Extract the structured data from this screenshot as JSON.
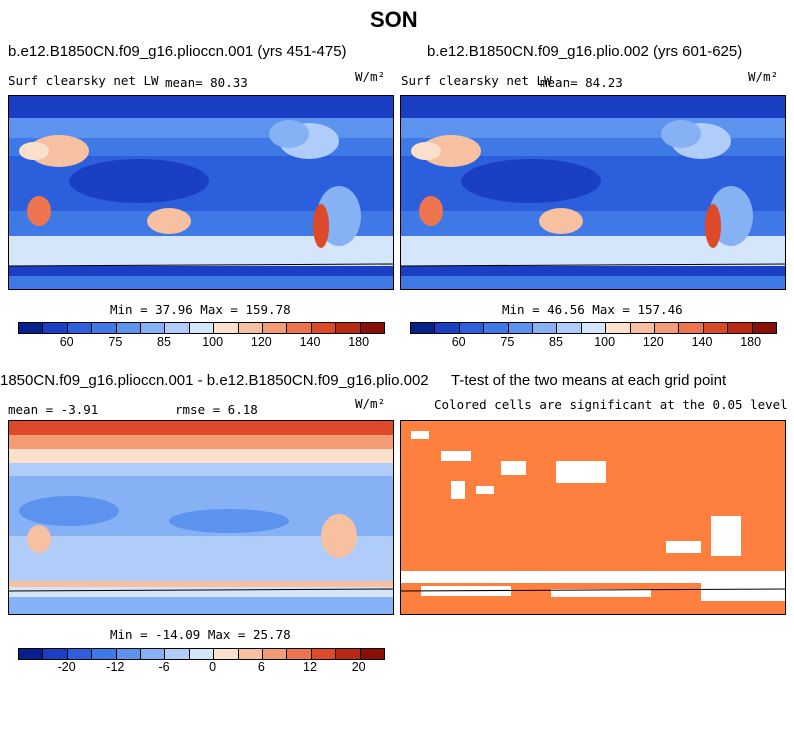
{
  "figure_title": "SON",
  "panels": {
    "a": {
      "title": "b.e12.B1850CN.f09_g16.plioccn.001 (yrs 451-475)",
      "left_label": "Surf clearsky net LW",
      "mean_label": "mean=  80.33",
      "units": "W/m²",
      "minmax": "Min =  37.96 Max = 159.78"
    },
    "b": {
      "title": "b.e12.B1850CN.f09_g16.plio.002 (yrs 601-625)",
      "left_label": "Surf clearsky net LW",
      "mean_label": "mean=  84.23",
      "units": "W/m²",
      "minmax": "Min =  46.56 Max = 157.46"
    },
    "c": {
      "title": "1850CN.f09_g16.plioccn.001 - b.e12.B1850CN.f09_g16.plio.002",
      "mean_label": "mean =  -3.91",
      "rmse_label": "rmse =   6.18",
      "units": "W/m²",
      "minmax": "Min = -14.09 Max =  25.78"
    },
    "d": {
      "title": "T-test of the two means at each grid point",
      "subtitle": "Colored cells are significant at the 0.05 level"
    }
  },
  "colorbar_abs": {
    "ticks": [
      "60",
      "75",
      "85",
      "100",
      "120",
      "140",
      "180"
    ],
    "colors": [
      "#08208c",
      "#1a3fc4",
      "#2c5fdc",
      "#3f79e6",
      "#5c93ee",
      "#86b1f4",
      "#afcdf8",
      "#d5e6fb",
      "#fbe0cc",
      "#f7c0a0",
      "#f29c74",
      "#ec744e",
      "#dc4a2a",
      "#b82914",
      "#8a0f06"
    ]
  },
  "colorbar_diff": {
    "ticks": [
      "-20",
      "-12",
      "-6",
      "0",
      "6",
      "12",
      "20"
    ],
    "colors": [
      "#08208c",
      "#1a3fc4",
      "#2c5fdc",
      "#3f79e6",
      "#5c93ee",
      "#86b1f4",
      "#afcdf8",
      "#d5e6fb",
      "#fbe0cc",
      "#f7c0a0",
      "#f29c74",
      "#ec744e",
      "#dc4a2a",
      "#b82914",
      "#8a0f06"
    ]
  },
  "colors": {
    "ttest_fill": "#ff7f3f",
    "ocean_dark": "#2a52d8",
    "ocean_mid": "#5c8ff0",
    "ocean_light": "#cfe0fa"
  }
}
